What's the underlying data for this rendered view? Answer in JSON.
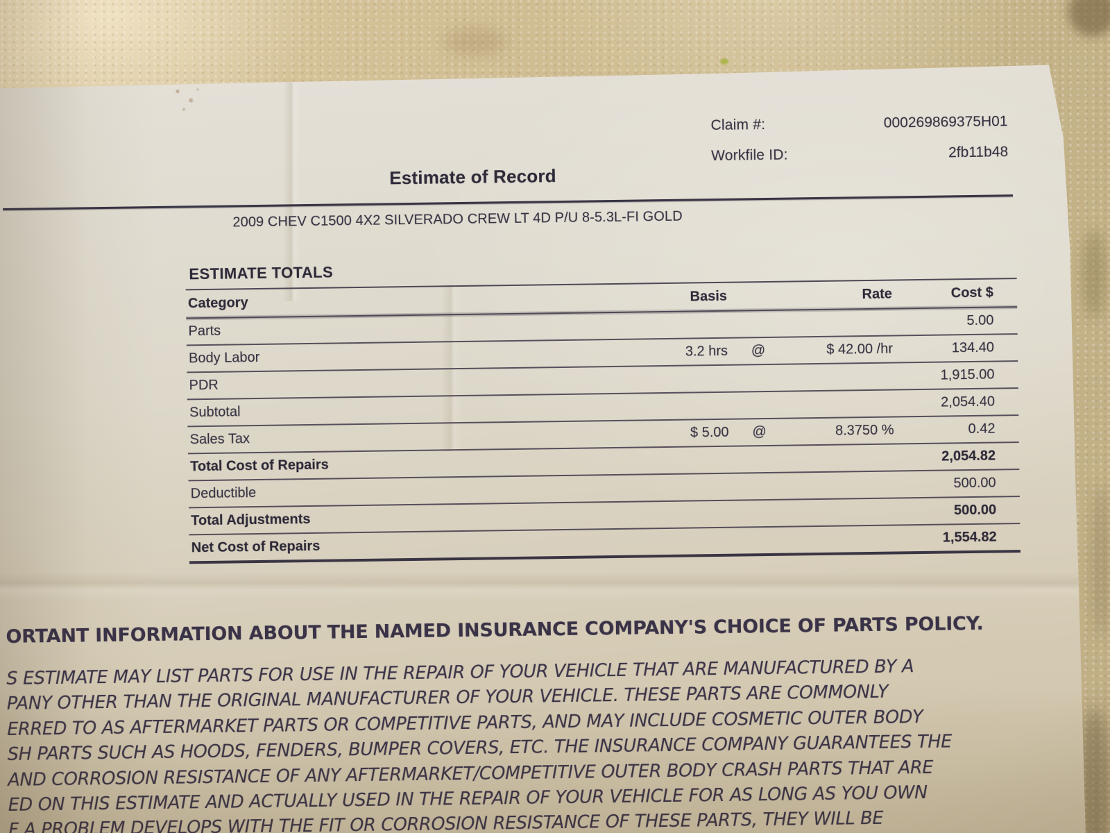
{
  "document": {
    "claim": {
      "label": "Claim #:",
      "value": "000269869375H01"
    },
    "workfile": {
      "label": "Workfile ID:",
      "value": "2fb11b48"
    },
    "title": "Estimate of Record",
    "vehicle": "2009 CHEV C1500 4X2 SILVERADO CREW LT 4D P/U 8-5.3L-FI GOLD"
  },
  "totals": {
    "heading": "ESTIMATE TOTALS",
    "columns": [
      "Category",
      "Basis",
      "Rate",
      "Cost $"
    ],
    "rows": [
      {
        "category": "Parts",
        "basis": "",
        "at": "",
        "rate": "",
        "cost": "5.00",
        "bold": false
      },
      {
        "category": "Body Labor",
        "basis": "3.2 hrs",
        "at": "@",
        "rate": "$ 42.00 /hr",
        "cost": "134.40",
        "bold": false
      },
      {
        "category": "PDR",
        "basis": "",
        "at": "",
        "rate": "",
        "cost": "1,915.00",
        "bold": false
      },
      {
        "category": "Subtotal",
        "basis": "",
        "at": "",
        "rate": "",
        "cost": "2,054.40",
        "bold": false
      },
      {
        "category": "Sales Tax",
        "basis": "$ 5.00",
        "at": "@",
        "rate": "8.3750 %",
        "cost": "0.42",
        "bold": false
      },
      {
        "category": "Total Cost of Repairs",
        "basis": "",
        "at": "",
        "rate": "",
        "cost": "2,054.82",
        "bold": true
      },
      {
        "category": "Deductible",
        "basis": "",
        "at": "",
        "rate": "",
        "cost": "500.00",
        "bold": false
      },
      {
        "category": "Total Adjustments",
        "basis": "",
        "at": "",
        "rate": "",
        "cost": "500.00",
        "bold": true
      },
      {
        "category": "Net Cost of Repairs",
        "basis": "",
        "at": "",
        "rate": "",
        "cost": "1,554.82",
        "bold": true
      }
    ]
  },
  "notice": {
    "heading": "ORTANT INFORMATION ABOUT THE NAMED INSURANCE COMPANY'S CHOICE OF PARTS POLICY.",
    "lines": [
      "S ESTIMATE MAY LIST PARTS FOR USE IN THE REPAIR OF YOUR VEHICLE THAT ARE MANUFACTURED BY A",
      "PANY OTHER THAN THE ORIGINAL MANUFACTURER OF YOUR VEHICLE. THESE PARTS ARE COMMONLY",
      "ERRED TO AS AFTERMARKET PARTS OR COMPETITIVE PARTS, AND MAY INCLUDE COSMETIC OUTER BODY",
      "SH PARTS SUCH AS HOODS, FENDERS, BUMPER COVERS, ETC. THE INSURANCE COMPANY GUARANTEES THE",
      "AND CORROSION RESISTANCE OF ANY AFTERMARKET/COMPETITIVE OUTER BODY CRASH PARTS THAT ARE",
      "ED ON THIS ESTIMATE AND ACTUALLY USED IN THE REPAIR OF YOUR VEHICLE FOR AS LONG AS YOU OWN",
      "F A PROBLEM DEVELOPS WITH THE FIT OR CORROSION RESISTANCE OF THESE PARTS, THEY WILL BE"
    ]
  },
  "colors": {
    "ink": "#35303f",
    "paper": "#ddd8ca",
    "wall": "#cfbc94"
  }
}
